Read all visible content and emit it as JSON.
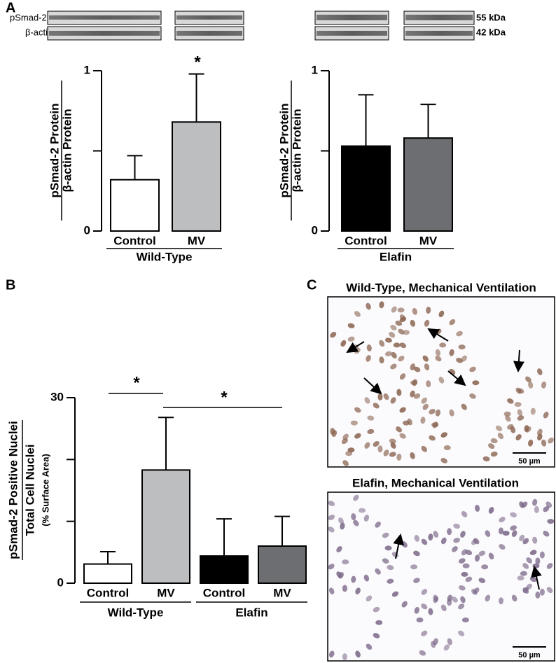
{
  "figure_labels": [
    "A",
    "B",
    "C"
  ],
  "blots": {
    "rows": [
      "pSmad-2",
      "β-actin"
    ],
    "sizes": [
      "55 kDa",
      "42 kDa"
    ]
  },
  "chart_data": [
    {
      "type": "bar",
      "ylabel": [
        "pSmad-2 Protein",
        "β-actin Protein"
      ],
      "ylim": [
        0,
        1
      ],
      "yticks": [
        0,
        1
      ],
      "minor_yticks": [
        0.5
      ],
      "groups": [
        {
          "name": "Wild-Type",
          "categories": [
            "Control",
            "MV"
          ],
          "values": [
            0.32,
            0.68
          ],
          "errors": [
            0.15,
            0.3
          ],
          "colors": [
            "#ffffff",
            "#bcbec0"
          ]
        }
      ],
      "annotations": [
        "*"
      ]
    },
    {
      "type": "bar",
      "ylabel": [
        "pSmad-2 Protein",
        "β-actin Protein"
      ],
      "ylim": [
        0,
        1
      ],
      "yticks": [
        0,
        1
      ],
      "minor_yticks": [
        0.5
      ],
      "groups": [
        {
          "name": "Elafin",
          "categories": [
            "Control",
            "MV"
          ],
          "values": [
            0.53,
            0.58
          ],
          "errors": [
            0.32,
            0.21
          ],
          "colors": [
            "#000000",
            "#6d6e71"
          ]
        }
      ]
    },
    {
      "type": "bar",
      "ylabel": [
        "pSmad-2 Positive Nuclei",
        "Total Cell Nuclei",
        "(% Surface Area)"
      ],
      "ylim": [
        0,
        30
      ],
      "yticks": [
        0,
        30
      ],
      "minor_yticks": [
        10,
        20
      ],
      "groups": [
        {
          "name": "Wild-Type",
          "categories": [
            "Control",
            "MV"
          ],
          "values": [
            3.1,
            18.3
          ],
          "errors": [
            2.0,
            8.5
          ],
          "colors": [
            "#ffffff",
            "#bcbec0"
          ]
        },
        {
          "name": "Elafin",
          "categories": [
            "Control",
            "MV"
          ],
          "values": [
            4.4,
            6.0
          ],
          "errors": [
            6.0,
            4.8
          ],
          "colors": [
            "#000000",
            "#6d6e71"
          ]
        }
      ],
      "annotations": [
        "*",
        "*"
      ]
    }
  ],
  "micrographs": [
    {
      "title": "Wild-Type, Mechanical Ventilation",
      "scale": "50 µm"
    },
    {
      "title": "Elafin,  Mechanical Ventilation",
      "scale": "50 µm"
    }
  ]
}
